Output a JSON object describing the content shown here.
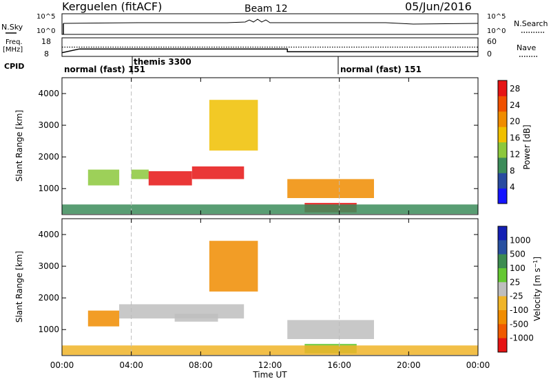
{
  "header": {
    "station": "Kerguelen (fitACF)",
    "beam": "Beam 12",
    "date": "05/Jun/2016"
  },
  "top_panels": {
    "nsky_label": "N.Sky",
    "nsky_ticks": [
      "10^5",
      "10^0"
    ],
    "nsearch_label": "N.Search",
    "nsearch_ticks": [
      "10^5",
      "10^0"
    ],
    "freq_label_line1": "Freq.",
    "freq_label_line2": "[MHz]",
    "freq_ticks": [
      "18",
      "8"
    ],
    "nave_label": "Nave",
    "nave_ticks": [
      "60",
      "0"
    ],
    "cpid_label": "CPID",
    "cpid_segments": [
      {
        "name": "normal (fast) 151",
        "start_hour": 0,
        "end_hour": 4
      },
      {
        "name": "themis 3300",
        "start_hour": 4,
        "end_hour": 16
      },
      {
        "name": "normal (fast) 151",
        "start_hour": 16,
        "end_hour": 24
      }
    ],
    "freq_mhz": [
      {
        "hour": 0,
        "value": 10
      },
      {
        "hour": 1,
        "value": 12
      },
      {
        "hour": 13,
        "value": 12
      },
      {
        "hour": 13,
        "value": 10.5
      },
      {
        "hour": 24,
        "value": 10.5
      }
    ],
    "nave_level": 30
  },
  "chart_data": [
    {
      "type": "heatmap",
      "panel": "power",
      "xlabel": "",
      "ylabel": "Slant Range [km]",
      "xlim": [
        0,
        24
      ],
      "ylim": [
        180,
        4500
      ],
      "yticks": [
        "1000",
        "2000",
        "3000",
        "4000"
      ],
      "colorbar": {
        "label": "Power [dB]",
        "ticks": [
          "4",
          "8",
          "12",
          "16",
          "20",
          "24",
          "28"
        ],
        "range": [
          0,
          30
        ]
      },
      "echo_regions": [
        {
          "t0": 1.5,
          "t1": 3.3,
          "r0": 1100,
          "r1": 1600,
          "value": 14
        },
        {
          "t0": 4.0,
          "t1": 5.0,
          "r0": 1300,
          "r1": 1600,
          "value": 12
        },
        {
          "t0": 5.0,
          "t1": 7.5,
          "r0": 1100,
          "r1": 1550,
          "value": 28
        },
        {
          "t0": 7.5,
          "t1": 10.5,
          "r0": 1300,
          "r1": 1700,
          "value": 27
        },
        {
          "t0": 8.5,
          "t1": 11.3,
          "r0": 2200,
          "r1": 3800,
          "value": 18
        },
        {
          "t0": 13.0,
          "t1": 18.0,
          "r0": 700,
          "r1": 1300,
          "value": 22
        },
        {
          "t0": 14.0,
          "t1": 17.0,
          "r0": 250,
          "r1": 550,
          "value": 27
        },
        {
          "t0": 0.0,
          "t1": 24.0,
          "r0": 200,
          "r1": 500,
          "value": 8
        }
      ]
    },
    {
      "type": "heatmap",
      "panel": "velocity",
      "xlabel": "Time UT",
      "ylabel": "Slant Range [km]",
      "xlim": [
        0,
        24
      ],
      "ylim": [
        180,
        4500
      ],
      "xticks": [
        "00:00",
        "04:00",
        "08:00",
        "12:00",
        "16:00",
        "20:00",
        "00:00"
      ],
      "yticks": [
        "1000",
        "2000",
        "3000",
        "4000"
      ],
      "colorbar": {
        "label": "Velocity [m s^-1]",
        "ticks": [
          "1000",
          "500",
          "100",
          "25",
          "-25",
          "-100",
          "-500",
          "-1000"
        ]
      },
      "echo_regions": [
        {
          "t0": 1.5,
          "t1": 3.3,
          "r0": 1100,
          "r1": 1600,
          "value": -150
        },
        {
          "t0": 3.3,
          "t1": 10.5,
          "r0": 1350,
          "r1": 1800,
          "value": 0
        },
        {
          "t0": 6.5,
          "t1": 9.0,
          "r0": 1250,
          "r1": 1500,
          "value": 0
        },
        {
          "t0": 8.5,
          "t1": 11.3,
          "r0": 2200,
          "r1": 3800,
          "value": -200
        },
        {
          "t0": 13.0,
          "t1": 18.0,
          "r0": 700,
          "r1": 1300,
          "value": 0
        },
        {
          "t0": 14.0,
          "t1": 17.0,
          "r0": 250,
          "r1": 550,
          "value": 60
        },
        {
          "t0": 0.0,
          "t1": 24.0,
          "r0": 200,
          "r1": 500,
          "value": -40
        }
      ]
    }
  ],
  "colors": {
    "power_scale": [
      "#1414ff",
      "#284ba0",
      "#3c8c5a",
      "#8cc83c",
      "#f0c000",
      "#f08c00",
      "#f05000",
      "#e61414"
    ],
    "velocity_scale": [
      "#1420b4",
      "#2850a0",
      "#3c8c50",
      "#64c832",
      "#bebebe",
      "#f0b428",
      "#f08c00",
      "#f05a00",
      "#e61414"
    ],
    "guide": "#bbbbbb"
  }
}
